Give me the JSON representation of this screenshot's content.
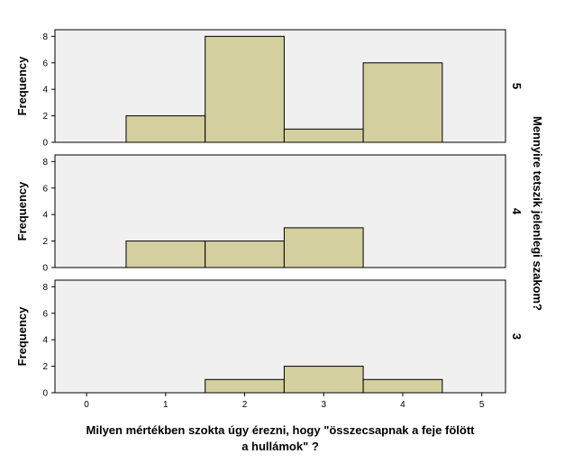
{
  "chart_data": {
    "type": "bar",
    "subtype": "faceted-histogram",
    "xlabel_lines": [
      "Milyen mértékben szokta úgy érezni, hogy \"összecsapnak a feje fölött",
      "a hullámok\" ?"
    ],
    "ylabel": "Frequency",
    "facet_title": "Mennyire tetszik jelenlegi szakom?",
    "xlim": [
      -0.4,
      5.3
    ],
    "xticks": [
      0,
      1,
      2,
      3,
      4,
      5
    ],
    "ylim": [
      0,
      8.5
    ],
    "yticks": [
      0,
      2,
      4,
      6,
      8
    ],
    "bin_edges": [
      0.5,
      1.5,
      2.5,
      3.5,
      4.5
    ],
    "bar_color": "#d4cf9e",
    "panel_background": "#f0f0f0",
    "panels": [
      {
        "label": "5",
        "counts": [
          2,
          8,
          1,
          6
        ]
      },
      {
        "label": "4",
        "counts": [
          2,
          2,
          3,
          0
        ]
      },
      {
        "label": "3",
        "counts": [
          0,
          1,
          2,
          1
        ]
      }
    ]
  }
}
